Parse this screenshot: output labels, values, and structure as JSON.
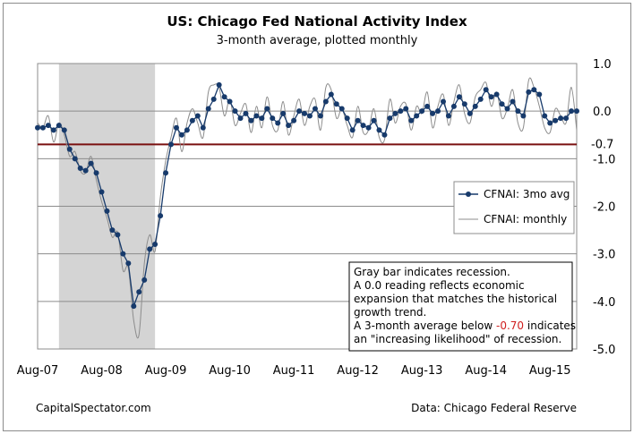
{
  "chart_data": {
    "type": "line",
    "title": "US: Chicago Fed National Activity Index",
    "subtitle": "3-month average, plotted monthly",
    "ylim": [
      -5.0,
      1.0
    ],
    "y_ticks": [
      "1.0",
      "0.0",
      "-1.0",
      "-2.0",
      "-3.0",
      "-4.0",
      "-5.0"
    ],
    "y_tick_values": [
      1.0,
      0.0,
      -1.0,
      -2.0,
      -3.0,
      -4.0,
      -5.0
    ],
    "x_ticks": [
      "Aug-07",
      "Aug-08",
      "Aug-09",
      "Aug-10",
      "Aug-11",
      "Aug-12",
      "Aug-13",
      "Aug-14",
      "Aug-15"
    ],
    "x_start": "Aug-07",
    "x_end": "Aug-15",
    "grid": true,
    "legend_position": "right",
    "recession_shading": {
      "start": "Dec-07",
      "end": "Jun-09"
    },
    "threshold": {
      "value": -0.7,
      "label": "-0.7",
      "color": "#7a1010"
    },
    "series": [
      {
        "name": "CFNAI: 3mo avg",
        "color": "#173a6b",
        "marker": "circle",
        "values": [
          -0.35,
          -0.35,
          -0.3,
          -0.4,
          -0.3,
          -0.4,
          -0.8,
          -1.0,
          -1.2,
          -1.25,
          -1.1,
          -1.3,
          -1.7,
          -2.1,
          -2.5,
          -2.6,
          -3.0,
          -3.2,
          -4.1,
          -3.8,
          -3.55,
          -2.9,
          -2.8,
          -2.2,
          -1.3,
          -0.7,
          -0.35,
          -0.5,
          -0.4,
          -0.2,
          -0.1,
          -0.35,
          0.05,
          0.25,
          0.55,
          0.3,
          0.2,
          0.0,
          -0.15,
          -0.05,
          -0.2,
          -0.1,
          -0.15,
          0.05,
          -0.15,
          -0.25,
          -0.05,
          -0.3,
          -0.2,
          0.0,
          -0.05,
          -0.1,
          0.05,
          -0.1,
          0.2,
          0.35,
          0.15,
          0.05,
          -0.15,
          -0.4,
          -0.2,
          -0.3,
          -0.35,
          -0.2,
          -0.4,
          -0.5,
          -0.15,
          -0.05,
          0.0,
          0.05,
          -0.2,
          -0.1,
          0.0,
          0.1,
          -0.05,
          0.0,
          0.2,
          -0.1,
          0.1,
          0.3,
          0.15,
          -0.05,
          0.1,
          0.25,
          0.45,
          0.3,
          0.35,
          0.15,
          0.05,
          0.2,
          0.0,
          -0.1,
          0.4,
          0.45,
          0.35,
          -0.1,
          -0.25,
          -0.2,
          -0.15,
          -0.15,
          0.0,
          0.0
        ]
      },
      {
        "name": "CFNAI: monthly",
        "color": "#8c8c8c",
        "values": [
          -0.25,
          -0.35,
          -0.1,
          -0.65,
          -0.25,
          -0.5,
          -0.95,
          -0.85,
          -1.25,
          -1.3,
          -0.95,
          -1.45,
          -1.9,
          -2.25,
          -2.65,
          -2.55,
          -3.35,
          -3.3,
          -4.4,
          -4.7,
          -3.2,
          -2.6,
          -2.95,
          -1.8,
          -1.05,
          -0.55,
          -0.15,
          -0.85,
          -0.25,
          0.05,
          -0.25,
          -0.55,
          0.4,
          0.55,
          0.5,
          -0.1,
          0.25,
          -0.3,
          -0.05,
          0.15,
          -0.45,
          0.1,
          -0.35,
          0.3,
          -0.3,
          -0.4,
          0.2,
          -0.5,
          -0.1,
          0.25,
          -0.3,
          0.1,
          0.25,
          -0.4,
          0.5,
          0.45,
          -0.15,
          0.05,
          -0.3,
          -0.55,
          0.1,
          -0.45,
          -0.4,
          0.05,
          -0.55,
          -0.6,
          0.25,
          -0.25,
          0.1,
          0.15,
          -0.4,
          0.1,
          -0.05,
          0.4,
          -0.35,
          0.1,
          0.35,
          -0.3,
          0.2,
          0.55,
          -0.05,
          -0.25,
          0.3,
          0.45,
          0.6,
          0.1,
          0.4,
          -0.15,
          0.05,
          0.45,
          -0.25,
          -0.35,
          0.65,
          0.5,
          0.1,
          -0.35,
          -0.45,
          0.05,
          -0.1,
          -0.25,
          0.5,
          -0.4
        ]
      }
    ],
    "legend": [
      "CFNAI: 3mo avg",
      "CFNAI: monthly"
    ],
    "annotation_lines": [
      "Gray bar indicates recession.",
      "A 0.0 reading reflects economic",
      "expansion that matches the historical",
      "growth trend.",
      "A 3-month average below ",
      "an \"increasing likelihood\" of recession."
    ],
    "annotation_highlight": "-0.70",
    "annotation_highlight_suffix": " indicates",
    "annotation_highlight_color": "#d02020",
    "source_left": "CapitalSpectator.com",
    "source_right": "Data: Chicago Federal Reserve"
  }
}
